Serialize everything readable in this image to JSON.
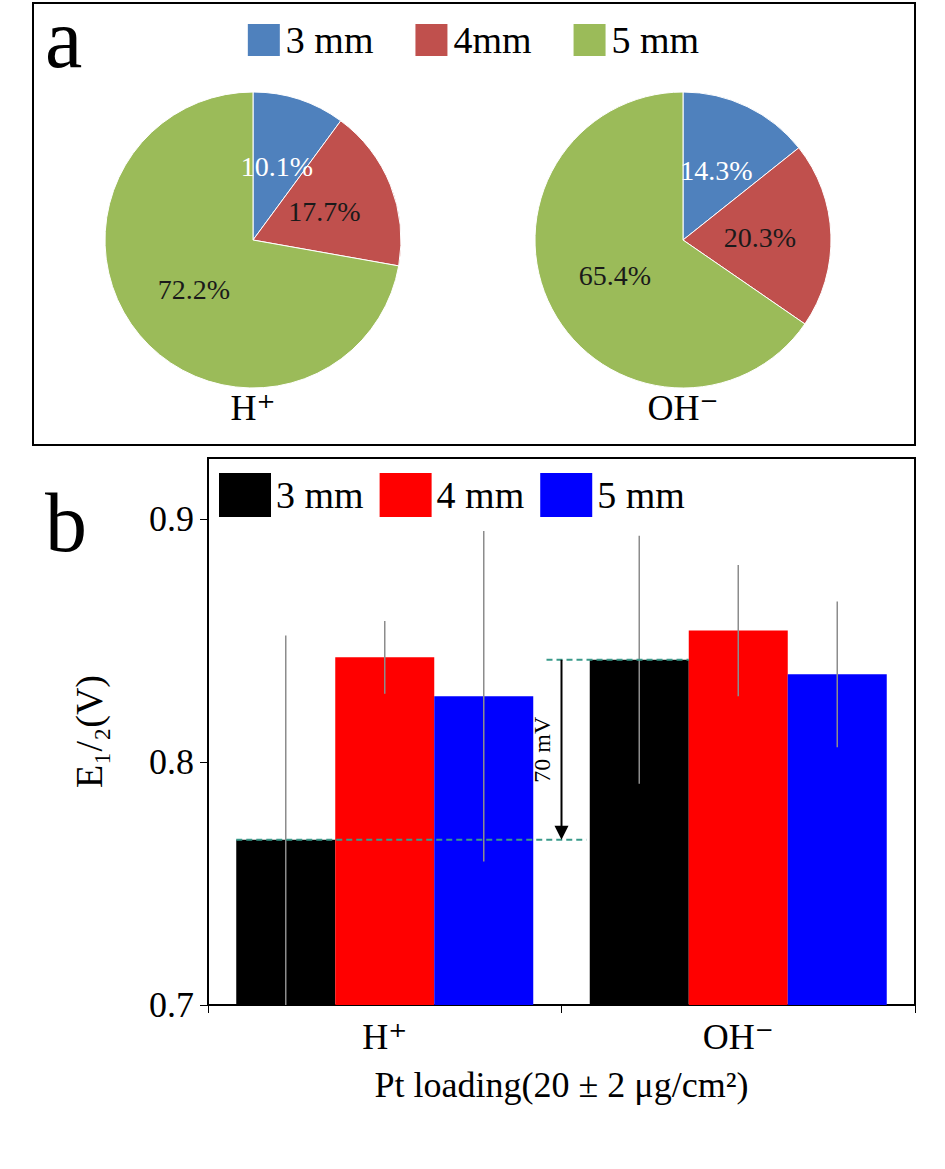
{
  "chart_data": [
    {
      "type": "pie",
      "panel_label": "a",
      "title": "H⁺",
      "categories": [
        "3 mm",
        "4mm",
        "5 mm"
      ],
      "values": [
        10.1,
        17.7,
        72.2
      ],
      "value_labels": [
        "10.1%",
        "17.7%",
        "72.2%"
      ],
      "colors": [
        "#4f81bd",
        "#c0504d",
        "#9bbb59"
      ],
      "data_labels": true,
      "legend": "top"
    },
    {
      "type": "pie",
      "title": "OH⁻",
      "categories": [
        "3 mm",
        "4mm",
        "5 mm"
      ],
      "values": [
        14.3,
        20.3,
        65.4
      ],
      "value_labels": [
        "14.3%",
        "20.3%",
        "65.4%"
      ],
      "colors": [
        "#4f81bd",
        "#c0504d",
        "#9bbb59"
      ],
      "data_labels": true
    },
    {
      "type": "bar",
      "panel_label": "b",
      "x_label": "Pt loading(20 ± 2 μg/cm²)",
      "y_label": "E₁/₂(V)",
      "categories": [
        "H⁺",
        "OH⁻"
      ],
      "series": [
        {
          "name": "3 mm",
          "color": "#000000",
          "values": [
            0.768,
            0.842
          ],
          "errors": [
            0.084,
            0.051
          ]
        },
        {
          "name": "4 mm",
          "color": "#ff0000",
          "values": [
            0.843,
            0.854
          ],
          "errors": [
            0.015,
            0.027
          ]
        },
        {
          "name": "5 mm",
          "color": "#0000ff",
          "values": [
            0.827,
            0.836
          ],
          "errors": [
            0.068,
            0.03
          ]
        }
      ],
      "ylim": [
        0.7,
        0.925
      ],
      "yticks": [
        0.7,
        0.8,
        0.9
      ],
      "grid": false,
      "legend": "upper left",
      "data_labels": false,
      "annotations": [
        {
          "text": "70 mV"
        }
      ]
    }
  ]
}
